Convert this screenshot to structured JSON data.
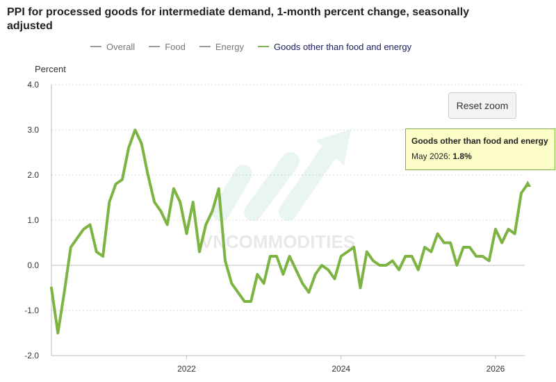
{
  "chart_data": {
    "type": "line",
    "title": "PPI for processed goods for intermediate demand, 1-month percent change, seasonally adjusted",
    "ylabel": "Percent",
    "xlabel": "",
    "ylim": [
      -2.0,
      4.0
    ],
    "yticks": [
      "4.0",
      "3.0",
      "2.0",
      "1.0",
      "0.0",
      "-1.0",
      "-2.0"
    ],
    "xticks": [
      "2022",
      "2024",
      "2026"
    ],
    "x_start": "2020-04",
    "x_end": "2026-05",
    "legend": [
      {
        "name": "Overall",
        "color": "#9a9a9a",
        "visible": false
      },
      {
        "name": "Food",
        "color": "#9a9a9a",
        "visible": false
      },
      {
        "name": "Energy",
        "color": "#9a9a9a",
        "visible": false
      },
      {
        "name": "Goods other than food and energy",
        "color": "#7cb342",
        "visible": true
      }
    ],
    "series": [
      {
        "name": "Goods other than food and energy",
        "color": "#7cb342",
        "values": [
          -0.5,
          -1.5,
          -0.6,
          0.4,
          0.6,
          0.8,
          0.9,
          0.3,
          0.2,
          1.4,
          1.8,
          1.9,
          2.6,
          3.0,
          2.7,
          2.0,
          1.4,
          1.2,
          0.9,
          1.7,
          1.4,
          0.7,
          1.4,
          0.3,
          0.9,
          1.2,
          1.7,
          0.1,
          -0.4,
          -0.6,
          -0.8,
          -0.8,
          -0.2,
          -0.4,
          0.2,
          0.2,
          -0.2,
          0.2,
          -0.1,
          -0.4,
          -0.6,
          -0.2,
          0.0,
          -0.1,
          -0.3,
          0.2,
          0.3,
          0.4,
          -0.5,
          0.3,
          0.1,
          0.0,
          0.0,
          0.1,
          -0.1,
          0.2,
          0.2,
          -0.1,
          0.4,
          0.3,
          0.7,
          0.5,
          0.5,
          0.0,
          0.4,
          0.4,
          0.2,
          0.2,
          0.1,
          0.8,
          0.5,
          0.8,
          0.7,
          1.6,
          1.8
        ]
      }
    ],
    "tooltip": {
      "series": "Goods other than food and energy",
      "label": "May 2026:",
      "value": "1.8%"
    }
  },
  "ui": {
    "reset_zoom": "Reset zoom",
    "watermark": "VNCOMMODITIES"
  }
}
